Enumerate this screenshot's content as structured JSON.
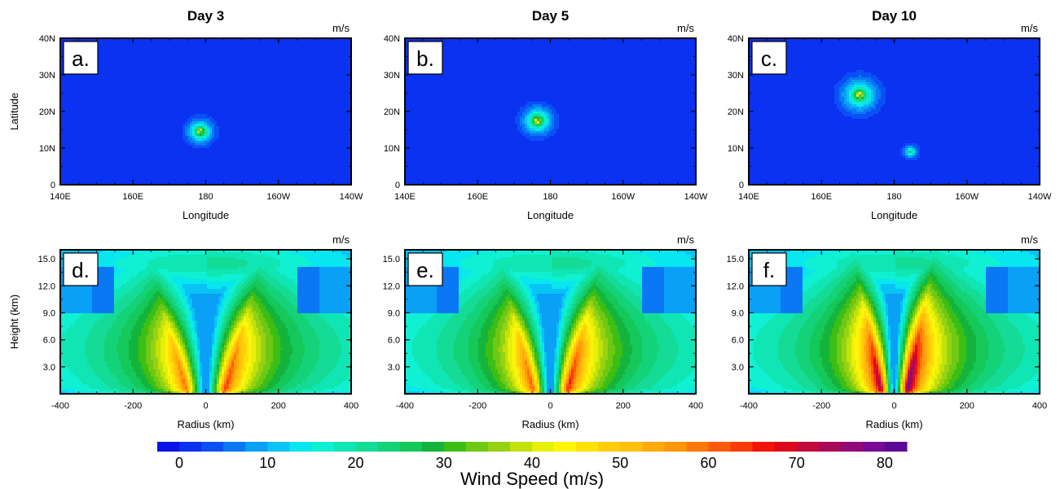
{
  "colorbar": {
    "label": "Wind Speed (m/s)",
    "ticks": [
      "0",
      "10",
      "20",
      "30",
      "40",
      "50",
      "60",
      "70",
      "80"
    ],
    "colors": [
      "#0a14e6",
      "#0a32f0",
      "#0a50f5",
      "#0a78f5",
      "#0aa0f5",
      "#08c3f5",
      "#08e6f0",
      "#10f0d2",
      "#10e6b4",
      "#14dc96",
      "#14d278",
      "#14c85a",
      "#14b43c",
      "#3cbe14",
      "#6ec814",
      "#96d214",
      "#c3e10a",
      "#e6f00a",
      "#fff50a",
      "#ffe10a",
      "#ffcd0a",
      "#ffbe0a",
      "#ffaa0a",
      "#ff960a",
      "#ff780a",
      "#ff5a0a",
      "#ff3c0a",
      "#f0140a",
      "#dc0a1e",
      "#c30a3c",
      "#aa0a5a",
      "#920a78",
      "#780a96",
      "#5a0a96"
    ]
  },
  "chart_data": [
    {
      "id": "a",
      "type": "heatmap",
      "panel_label": "a.",
      "title": "Day 3",
      "units": "m/s",
      "xlabel": "Longitude",
      "ylabel": "Latitude",
      "xticks": [
        "140E",
        "160E",
        "180",
        "160W",
        "140W"
      ],
      "yticks": [
        "0",
        "10N",
        "20N",
        "30N",
        "40N"
      ],
      "xlim": [
        140,
        220
      ],
      "ylim": [
        0,
        40
      ],
      "vortices": [
        {
          "lon": 178.5,
          "lat": 14.5,
          "vmax": 45,
          "r_deg": 3.5
        }
      ]
    },
    {
      "id": "b",
      "type": "heatmap",
      "panel_label": "b.",
      "title": "Day 5",
      "units": "m/s",
      "xlabel": "Longitude",
      "ylabel": "",
      "xticks": [
        "140E",
        "160E",
        "180",
        "160W",
        "140W"
      ],
      "yticks": [
        "0",
        "10N",
        "20N",
        "30N",
        "40N"
      ],
      "xlim": [
        140,
        220
      ],
      "ylim": [
        0,
        40
      ],
      "vortices": [
        {
          "lon": 176.5,
          "lat": 17.5,
          "vmax": 50,
          "r_deg": 4
        }
      ]
    },
    {
      "id": "c",
      "type": "heatmap",
      "panel_label": "c.",
      "title": "Day 10",
      "units": "m/s",
      "xlabel": "Longitude",
      "ylabel": "",
      "xticks": [
        "140E",
        "160E",
        "180",
        "160W",
        "140W"
      ],
      "yticks": [
        "0",
        "10N",
        "20N",
        "30N",
        "40N"
      ],
      "xlim": [
        140,
        220
      ],
      "ylim": [
        0,
        40
      ],
      "vortices": [
        {
          "lon": 170.5,
          "lat": 24.5,
          "vmax": 50,
          "r_deg": 5
        },
        {
          "lon": 184.5,
          "lat": 9,
          "vmax": 25,
          "r_deg": 2
        }
      ]
    },
    {
      "id": "d",
      "type": "heatmap",
      "panel_label": "d.",
      "title": "",
      "units": "m/s",
      "xlabel": "Radius (km)",
      "ylabel": "Height (km)",
      "xticks": [
        "-400",
        "-200",
        "0",
        "200",
        "400"
      ],
      "yticks": [
        "3.0",
        "6.0",
        "9.0",
        "12.0",
        "15.0"
      ],
      "xlim": [
        -400,
        400
      ],
      "ylim": [
        0,
        16
      ],
      "rmw_km": 50,
      "vmax": 60
    },
    {
      "id": "e",
      "type": "heatmap",
      "panel_label": "e.",
      "title": "",
      "units": "m/s",
      "xlabel": "Radius (km)",
      "ylabel": "",
      "xticks": [
        "-400",
        "-200",
        "0",
        "200",
        "400"
      ],
      "yticks": [
        "3.0",
        "6.0",
        "9.0",
        "12.0",
        "15.0"
      ],
      "xlim": [
        -400,
        400
      ],
      "ylim": [
        0,
        16
      ],
      "rmw_km": 45,
      "vmax": 62
    },
    {
      "id": "f",
      "type": "heatmap",
      "panel_label": "f.",
      "title": "",
      "units": "m/s",
      "xlabel": "Radius (km)",
      "ylabel": "",
      "xticks": [
        "-400",
        "-200",
        "0",
        "200",
        "400"
      ],
      "yticks": [
        "3.0",
        "6.0",
        "9.0",
        "12.0",
        "15.0"
      ],
      "xlim": [
        -400,
        400
      ],
      "ylim": [
        0,
        16
      ],
      "rmw_km": 35,
      "vmax": 75
    }
  ]
}
